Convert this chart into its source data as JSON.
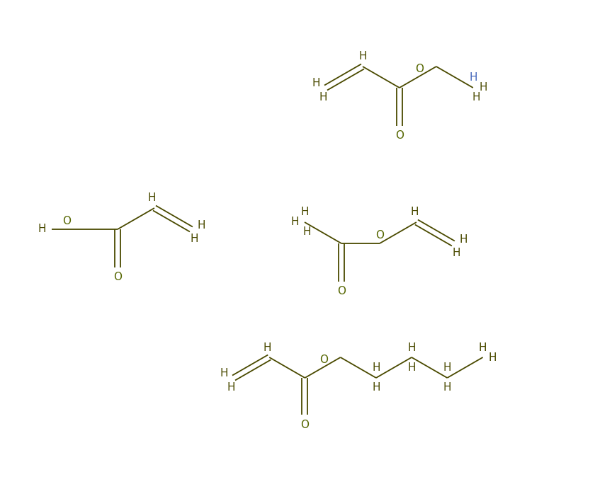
{
  "bg_color": "#ffffff",
  "bond_color": "#4a4a00",
  "H_color": "#4a4a00",
  "O_color": "#556600",
  "H_blue_color": "#4466bb",
  "figsize": [
    8.4,
    6.84
  ],
  "dpi": 100,
  "xlim": [
    0,
    840
  ],
  "ylim": [
    0,
    684
  ]
}
